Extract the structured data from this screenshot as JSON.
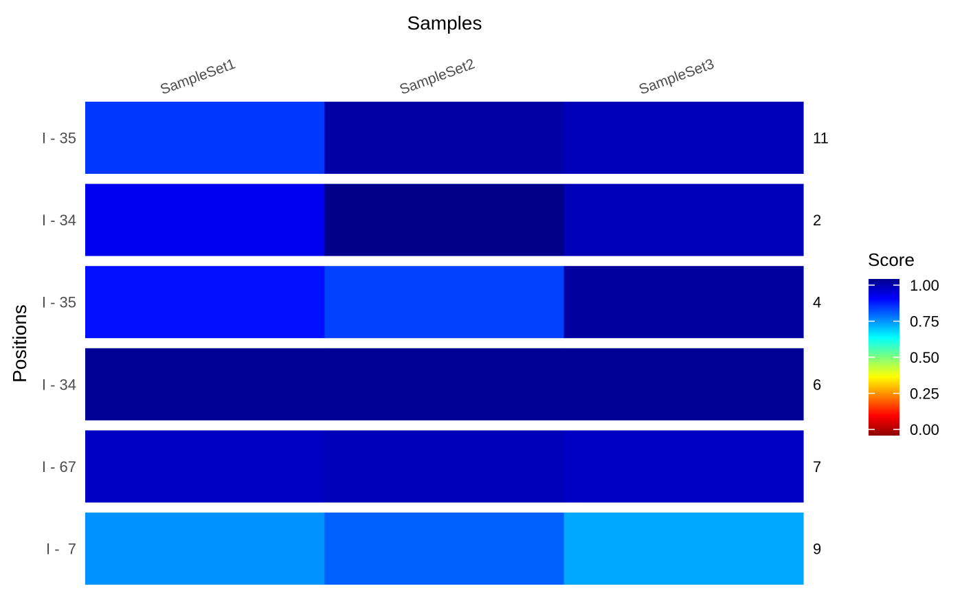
{
  "chart_data": {
    "type": "heatmap",
    "title": "Samples",
    "xlabel": "",
    "ylabel": "Positions",
    "columns": [
      "SampleSet1",
      "SampleSet2",
      "SampleSet3"
    ],
    "rows": [
      {
        "position": "I - 35",
        "right_label": "11",
        "values": [
          0.82,
          0.97,
          0.95
        ]
      },
      {
        "position": "I - 34",
        "right_label": "2",
        "values": [
          0.89,
          1.0,
          0.95
        ]
      },
      {
        "position": "I - 35",
        "right_label": "4",
        "values": [
          0.86,
          0.81,
          0.98
        ]
      },
      {
        "position": "I - 34",
        "right_label": "6",
        "values": [
          0.99,
          0.99,
          0.99
        ]
      },
      {
        "position": "I - 67",
        "right_label": "7",
        "values": [
          0.94,
          0.95,
          0.94
        ]
      },
      {
        "position": "I -  7",
        "right_label": "9",
        "values": [
          0.73,
          0.78,
          0.71
        ]
      }
    ],
    "legend": {
      "title": "Score",
      "placement": "right",
      "ticks": [
        "1.00",
        "0.75",
        "0.50",
        "0.25",
        "0.00"
      ],
      "tick_values": [
        1.0,
        0.75,
        0.5,
        0.25,
        0.0
      ],
      "range": [
        0,
        1
      ],
      "colors": [
        "#8b0000",
        "#ff0000",
        "#ff7f00",
        "#ffff00",
        "#7fff7f",
        "#00ffff",
        "#007fff",
        "#0000ff",
        "#00008b"
      ]
    }
  }
}
